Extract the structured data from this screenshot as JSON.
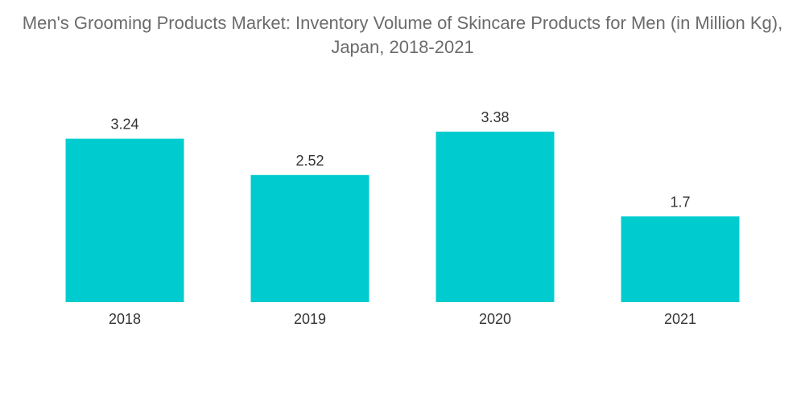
{
  "chart_data": {
    "type": "bar",
    "title": "Men's Grooming Products Market: Inventory Volume of Skincare Products for Men (in Million Kg), Japan, 2018-2021",
    "categories": [
      "2018",
      "2019",
      "2020",
      "2021"
    ],
    "values": [
      3.24,
      2.52,
      3.38,
      1.7
    ],
    "value_labels": [
      "3.24",
      "2.52",
      "3.38",
      "1.7"
    ],
    "xlabel": "",
    "ylabel": "",
    "ylim": [
      0,
      3.6
    ],
    "grid": false,
    "legend": "none",
    "bar_color": "#00cccf"
  }
}
